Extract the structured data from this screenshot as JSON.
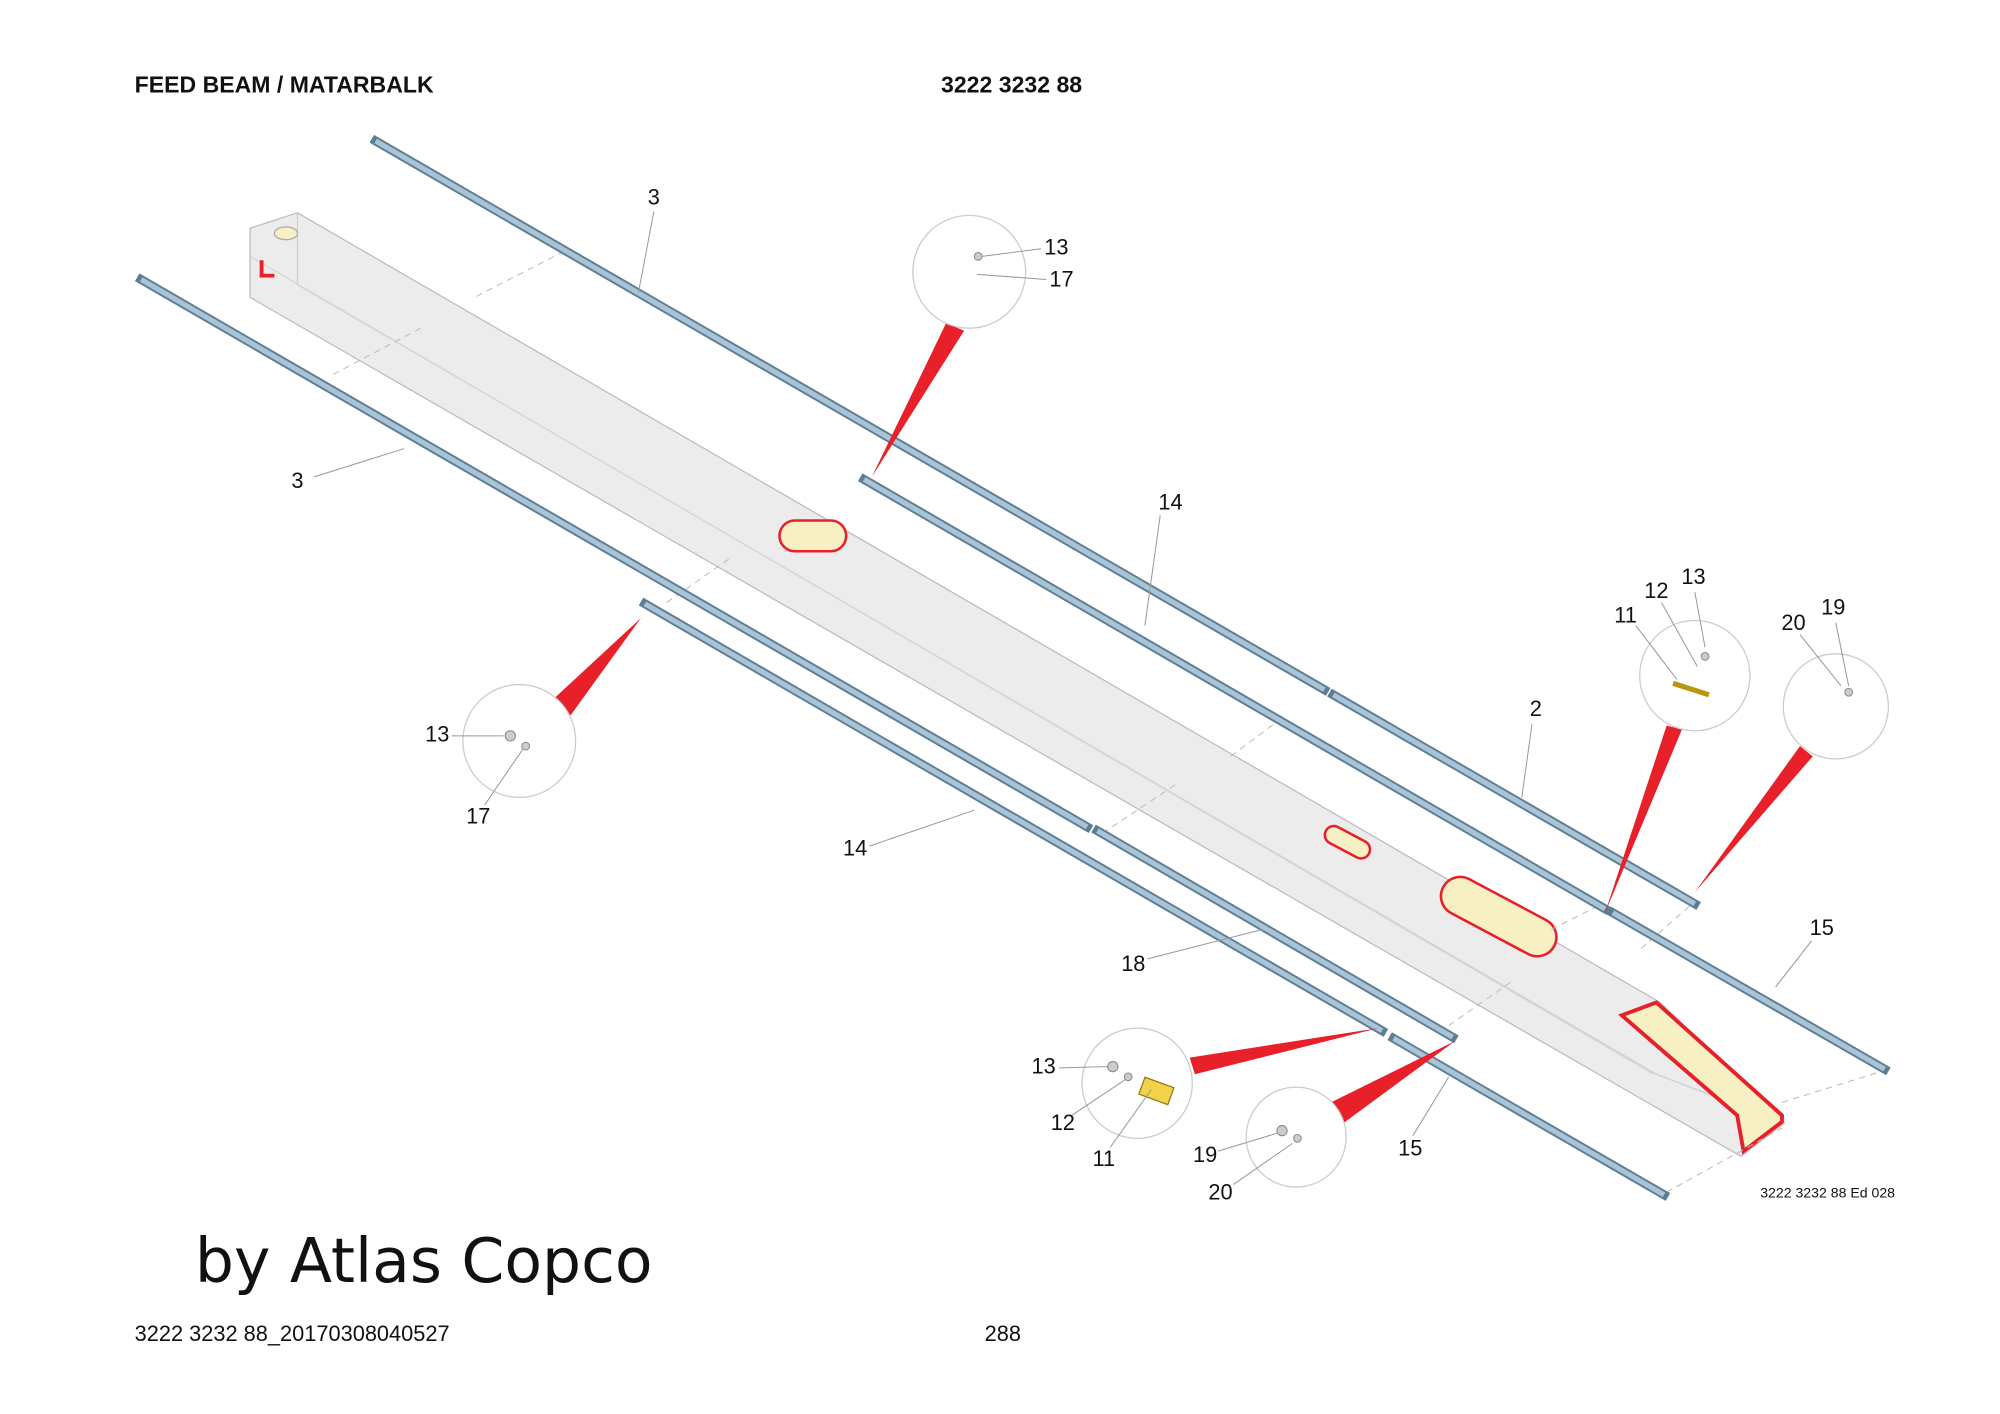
{
  "header": {
    "title": "FEED BEAM / MATARBALK",
    "part_number": "3222 3232 88"
  },
  "callouts": [
    "3",
    "3",
    "13",
    "17",
    "14",
    "13",
    "17",
    "14",
    "11",
    "12",
    "13",
    "20",
    "19",
    "2",
    "15",
    "18",
    "13",
    "12",
    "11",
    "19",
    "20",
    "15"
  ],
  "drawing_ref": "3222 3232 88 Ed 028",
  "watermark": "by Atlas Copco",
  "footer": {
    "document_id": "3222 3232 88_20170308040527",
    "page": "288"
  }
}
